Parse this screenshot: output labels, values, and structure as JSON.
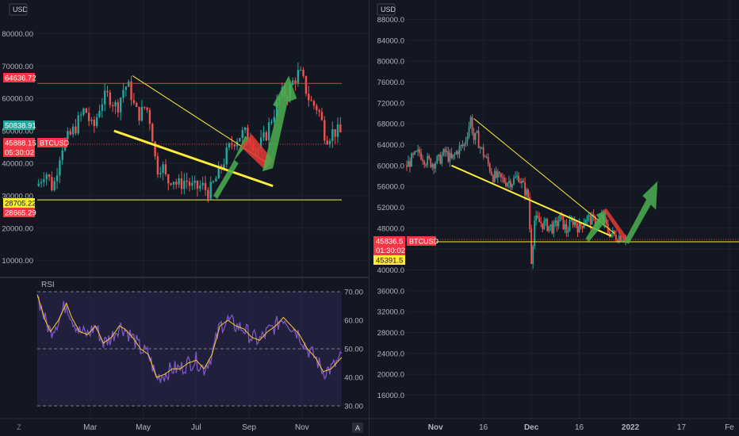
{
  "chart_data": [
    {
      "type": "candlestick",
      "panel": "left",
      "symbol": "BTCUSD",
      "currency_label": "USD",
      "y_axis_position": "left",
      "y_ticks": [
        "80000.00",
        "70000.00",
        "60000.00",
        "50000.00",
        "40000.00",
        "30000.00",
        "20000.00",
        "10000.00"
      ],
      "y_tick_values": [
        80000,
        70000,
        60000,
        50000,
        40000,
        30000,
        20000,
        10000
      ],
      "ylim": [
        6000,
        85000
      ],
      "x_ticks": [
        "Mar",
        "May",
        "Jul",
        "Sep",
        "Nov"
      ],
      "x_tick_months": [
        2.0,
        4.0,
        6.0,
        8.0,
        10.0
      ],
      "xlim_months": [
        0.0,
        11.5
      ],
      "price_path": [
        [
          0.0,
          33000
        ],
        [
          0.3,
          38000
        ],
        [
          0.6,
          32000
        ],
        [
          0.9,
          45000
        ],
        [
          1.2,
          48000
        ],
        [
          1.5,
          52000
        ],
        [
          1.8,
          57000
        ],
        [
          2.1,
          50000
        ],
        [
          2.4,
          59000
        ],
        [
          2.7,
          61000
        ],
        [
          3.0,
          57000
        ],
        [
          3.3,
          64000
        ],
        [
          3.5,
          63000
        ],
        [
          3.7,
          56000
        ],
        [
          3.9,
          55000
        ],
        [
          4.1,
          58000
        ],
        [
          4.3,
          52000
        ],
        [
          4.5,
          38000
        ],
        [
          4.7,
          40000
        ],
        [
          4.9,
          34000
        ],
        [
          5.1,
          36000
        ],
        [
          5.3,
          33000
        ],
        [
          5.6,
          35000
        ],
        [
          5.9,
          32000
        ],
        [
          6.2,
          33000
        ],
        [
          6.5,
          31000
        ],
        [
          6.8,
          36000
        ],
        [
          7.1,
          42000
        ],
        [
          7.4,
          47000
        ],
        [
          7.7,
          49000
        ],
        [
          8.0,
          49000
        ],
        [
          8.3,
          44000
        ],
        [
          8.6,
          48000
        ],
        [
          8.9,
          55000
        ],
        [
          9.2,
          61000
        ],
        [
          9.5,
          62000
        ],
        [
          9.7,
          66000
        ],
        [
          9.9,
          68000
        ],
        [
          10.1,
          64000
        ],
        [
          10.3,
          59000
        ],
        [
          10.6,
          57000
        ],
        [
          10.9,
          48000
        ],
        [
          11.2,
          50000
        ],
        [
          11.5,
          49000
        ]
      ],
      "horizontal_levels": [
        {
          "value": 64636.72,
          "color": "#f23645"
        },
        {
          "value": 28705.22,
          "color": "#ffeb3b"
        }
      ],
      "price_labels": [
        {
          "text": "64636.72",
          "value": 64636.72,
          "bg": "#f23645",
          "fg": "#ffffff"
        },
        {
          "text": "50838.91",
          "value": 50838.91,
          "bg": "#26a69a",
          "fg": "#ffffff"
        },
        {
          "text": "45888.15",
          "countdown": "05:30:02",
          "value": 45888.15,
          "bg": "#f23645",
          "fg": "#ffffff"
        },
        {
          "text": "28705.22",
          "value": 28705.22,
          "bg": "#ffeb3b",
          "fg": "#131722"
        },
        {
          "text": "28665.29",
          "value": 28665.29,
          "bg": "#f23645",
          "fg": "#ffffff"
        }
      ],
      "trendlines": [
        {
          "from": [
            3.6,
            67000
          ],
          "to": [
            8.7,
            40000
          ],
          "color": "#ffeb3b",
          "width": 1
        },
        {
          "from": [
            2.9,
            50000
          ],
          "to": [
            8.9,
            33000
          ],
          "color": "#ffeb3b",
          "width": 3
        }
      ],
      "colors": {
        "up": "#26a69a",
        "down": "#ef5350",
        "green_arrow": "#4caf50",
        "red_arrow": "#e53935"
      }
    },
    {
      "type": "line",
      "panel": "left",
      "title": "RSI",
      "y_ticks": [
        "70.00",
        "60.00",
        "50.00",
        "40.00",
        "30.00"
      ],
      "y_tick_values": [
        70,
        60,
        50,
        40,
        30
      ],
      "ylim": [
        28,
        72
      ],
      "band": [
        30,
        70
      ],
      "rsi_path": [
        [
          0.0,
          69
        ],
        [
          0.3,
          60
        ],
        [
          0.5,
          56
        ],
        [
          0.8,
          60
        ],
        [
          1.1,
          66
        ],
        [
          1.3,
          61
        ],
        [
          1.6,
          56
        ],
        [
          1.9,
          55
        ],
        [
          2.2,
          58
        ],
        [
          2.5,
          52
        ],
        [
          2.8,
          54
        ],
        [
          3.1,
          58
        ],
        [
          3.3,
          57
        ],
        [
          3.6,
          54
        ],
        [
          3.9,
          50
        ],
        [
          4.2,
          48
        ],
        [
          4.5,
          40
        ],
        [
          4.8,
          41
        ],
        [
          5.1,
          43
        ],
        [
          5.4,
          43
        ],
        [
          5.7,
          45
        ],
        [
          6.0,
          46
        ],
        [
          6.3,
          43
        ],
        [
          6.6,
          48
        ],
        [
          6.9,
          58
        ],
        [
          7.2,
          60
        ],
        [
          7.5,
          58
        ],
        [
          7.8,
          57
        ],
        [
          8.1,
          54
        ],
        [
          8.4,
          53
        ],
        [
          8.7,
          56
        ],
        [
          9.0,
          58
        ],
        [
          9.3,
          61
        ],
        [
          9.6,
          58
        ],
        [
          9.9,
          55
        ],
        [
          10.2,
          50
        ],
        [
          10.5,
          47
        ],
        [
          10.8,
          42
        ],
        [
          11.1,
          43
        ],
        [
          11.5,
          47
        ]
      ],
      "colors": {
        "rsi": "#7e57c2",
        "rsi_ma": "#ffca28",
        "band_fill": "#2a2650"
      }
    },
    {
      "type": "candlestick",
      "panel": "right",
      "symbol": "BTCUSD",
      "currency_label": "USD",
      "y_axis_position": "left",
      "y_ticks": [
        "88000.0",
        "84000.0",
        "80000.0",
        "76000.0",
        "72000.0",
        "68000.0",
        "64000.0",
        "60000.0",
        "56000.0",
        "52000.0",
        "48000.0",
        "44000.0",
        "40000.0",
        "36000.0",
        "32000.0",
        "28000.0",
        "24000.0",
        "20000.0",
        "16000.0"
      ],
      "y_tick_values": [
        88000,
        84000,
        80000,
        76000,
        72000,
        68000,
        64000,
        60000,
        56000,
        52000,
        48000,
        44000,
        40000,
        36000,
        32000,
        28000,
        24000,
        20000,
        16000
      ],
      "ylim": [
        12000,
        90000
      ],
      "x_ticks": [
        "Nov",
        "16",
        "Dec",
        "16",
        "2022",
        "17",
        "Fe"
      ],
      "x_tick_days": [
        0,
        15,
        30,
        45,
        61,
        77,
        92
      ],
      "xlim_days": [
        -9,
        95
      ],
      "price_path": [
        [
          -9,
          60000
        ],
        [
          -7,
          61500
        ],
        [
          -5,
          62500
        ],
        [
          -3,
          61000
        ],
        [
          -1,
          60500
        ],
        [
          1,
          61000
        ],
        [
          3,
          62500
        ],
        [
          5,
          61000
        ],
        [
          7,
          63000
        ],
        [
          9,
          64000
        ],
        [
          10,
          66500
        ],
        [
          11,
          69000
        ],
        [
          12,
          65000
        ],
        [
          13,
          65500
        ],
        [
          14,
          63500
        ],
        [
          16,
          61000
        ],
        [
          18,
          58000
        ],
        [
          20,
          57500
        ],
        [
          22,
          57000
        ],
        [
          24,
          57000
        ],
        [
          26,
          58000
        ],
        [
          27,
          56500
        ],
        [
          29,
          54000
        ],
        [
          30,
          42000
        ],
        [
          31,
          49500
        ],
        [
          33,
          49000
        ],
        [
          35,
          48500
        ],
        [
          37,
          48000
        ],
        [
          39,
          50000
        ],
        [
          41,
          47500
        ],
        [
          43,
          49500
        ],
        [
          45,
          48000
        ],
        [
          47,
          50000
        ],
        [
          49,
          49500
        ],
        [
          51,
          49000
        ],
        [
          52,
          50000
        ],
        [
          54,
          47500
        ],
        [
          56,
          46500
        ],
        [
          58,
          46500
        ],
        [
          60,
          46500
        ]
      ],
      "horizontal_levels": [
        {
          "value": 45391.5,
          "color": "#ffeb3b"
        }
      ],
      "price_labels": [
        {
          "text": "45836.5",
          "countdown": "01:30:02",
          "value": 45836.5,
          "bg": "#f23645",
          "fg": "#ffffff"
        },
        {
          "text": "45391.5",
          "value": 45391.5,
          "bg": "#ffeb3b",
          "fg": "#131722"
        }
      ],
      "trendlines": [
        {
          "from": [
            12,
            69000
          ],
          "to": [
            56,
            47000
          ],
          "color": "#ffeb3b",
          "width": 1
        },
        {
          "from": [
            5,
            60000
          ],
          "to": [
            55,
            46500
          ],
          "color": "#ffeb3b",
          "width": 2
        }
      ],
      "colors": {
        "up": "#26a69a",
        "down": "#ef5350",
        "green_arrow": "#4caf50",
        "red_arrow": "#e53935"
      }
    }
  ],
  "ui": {
    "timezone_button": "Z",
    "autoscale_button": "A"
  }
}
